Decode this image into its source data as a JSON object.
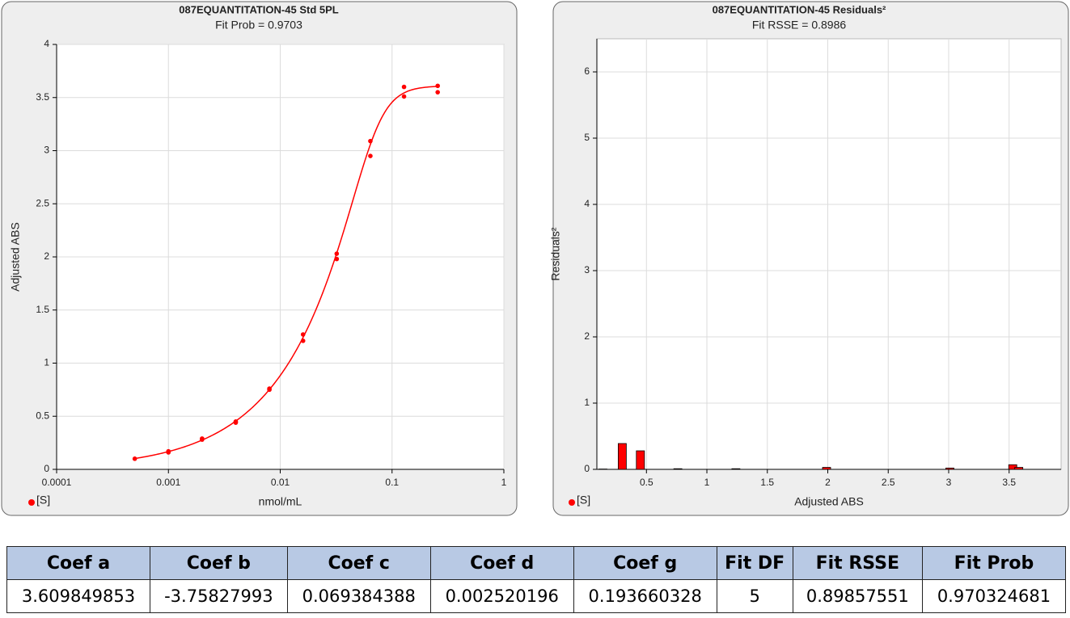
{
  "chart_data": [
    {
      "type": "scatter",
      "title": "087EQUANTITATION-45  Std 5PL",
      "subtitle": "Fit Prob = 0.9703",
      "x_label": "nmol/mL",
      "y_label": "Adjusted ABS",
      "xlog": true,
      "grid": true,
      "fit": "5PL",
      "xlim": [
        0.0001,
        1
      ],
      "xticks": [
        0.0001,
        0.001,
        0.01,
        0.1,
        1
      ],
      "ylim": [
        0,
        4
      ],
      "yticks": [
        0,
        0.5,
        1,
        1.5,
        2,
        2.5,
        3,
        3.5,
        4
      ],
      "legend": "bottom-left",
      "series": [
        {
          "name": "[S]",
          "color": "#ff0000",
          "x": [
            0.0005,
            0.001,
            0.001,
            0.002,
            0.002,
            0.004,
            0.004,
            0.008,
            0.008,
            0.016,
            0.016,
            0.032,
            0.032,
            0.064,
            0.064,
            0.128,
            0.128,
            0.256,
            0.256
          ],
          "values": [
            0.1,
            0.17,
            0.16,
            0.29,
            0.28,
            0.45,
            0.44,
            0.76,
            0.75,
            1.27,
            1.21,
            2.03,
            1.98,
            3.09,
            2.95,
            3.6,
            3.51,
            3.61,
            3.55
          ]
        }
      ]
    },
    {
      "type": "bar",
      "title": "087EQUANTITATION-45 Residuals²",
      "subtitle": "Fit RSSE = 0.8986",
      "x_label": "Adjusted ABS",
      "y_label": "Residuals²",
      "grid": true,
      "xlim": [
        0.09,
        3.93
      ],
      "xticks": [
        0.5,
        1,
        1.5,
        2,
        2.5,
        3,
        3.5
      ],
      "ylim": [
        0,
        6.5
      ],
      "yticks": [
        0,
        1,
        2,
        3,
        4,
        5,
        6
      ],
      "legend": "bottom-left",
      "series": [
        {
          "name": "[S]",
          "color": "#ff0000",
          "x": [
            0.14,
            0.3,
            0.45,
            0.76,
            1.24,
            1.99,
            3.01,
            3.53,
            3.58
          ],
          "values": [
            0.005,
            0.39,
            0.28,
            0.01,
            0.01,
            0.03,
            0.02,
            0.07,
            0.03
          ]
        }
      ]
    }
  ],
  "table": {
    "header": [
      "Coef a",
      "Coef b",
      "Coef c",
      "Coef d",
      "Coef g",
      "Fit DF",
      "Fit RSSE",
      "Fit Prob"
    ],
    "rows": [
      [
        3.609849853,
        -3.75827993,
        0.069384388,
        0.002520196,
        0.193660328,
        5,
        0.89857551,
        0.970324681
      ]
    ]
  }
}
